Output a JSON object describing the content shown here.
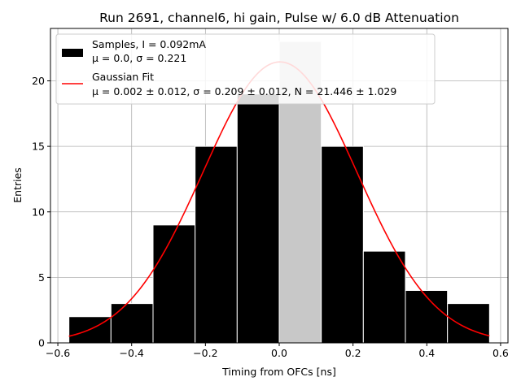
{
  "chart_data": {
    "type": "bar",
    "title": "Run 2691, channel6, hi gain, Pulse w/ 6.0 dB Attenuation",
    "xlabel": "Timing from OFCs [ns]",
    "ylabel": "Entries",
    "xlim": [
      -0.62,
      0.62
    ],
    "ylim": [
      0,
      24
    ],
    "xticks": [
      -0.6,
      -0.4,
      -0.2,
      0.0,
      0.2,
      0.4,
      0.6
    ],
    "xtick_labels": [
      "−0.6",
      "−0.4",
      "−0.2",
      "0.0",
      "0.2",
      "0.4",
      "0.6"
    ],
    "yticks": [
      0,
      5,
      10,
      15,
      20
    ],
    "ytick_labels": [
      "0",
      "5",
      "10",
      "15",
      "20"
    ],
    "grid": true,
    "legend_position": "top-left",
    "histogram": {
      "name": "Samples, I = 0.092mA",
      "stats_line": "μ = 0.0, σ = 0.221",
      "color": "#000000",
      "edge_color": "#ffffff",
      "bin_edges": [
        -0.57,
        -0.456,
        -0.342,
        -0.228,
        -0.114,
        0.0,
        0.114,
        0.228,
        0.342,
        0.456,
        0.57
      ],
      "counts": [
        2,
        3,
        9,
        15,
        19,
        23,
        15,
        7,
        4,
        3
      ],
      "highlight_bin": 5,
      "highlight_color": "#c8c8c8"
    },
    "fit": {
      "name": "Gaussian Fit",
      "params_line": "μ = 0.002 ± 0.012, σ = 0.209 ± 0.012, N = 21.446 ± 1.029",
      "color": "#ff0000",
      "mu": 0.002,
      "sigma": 0.209,
      "N": 21.446,
      "x_range": [
        -0.57,
        0.57
      ]
    }
  }
}
